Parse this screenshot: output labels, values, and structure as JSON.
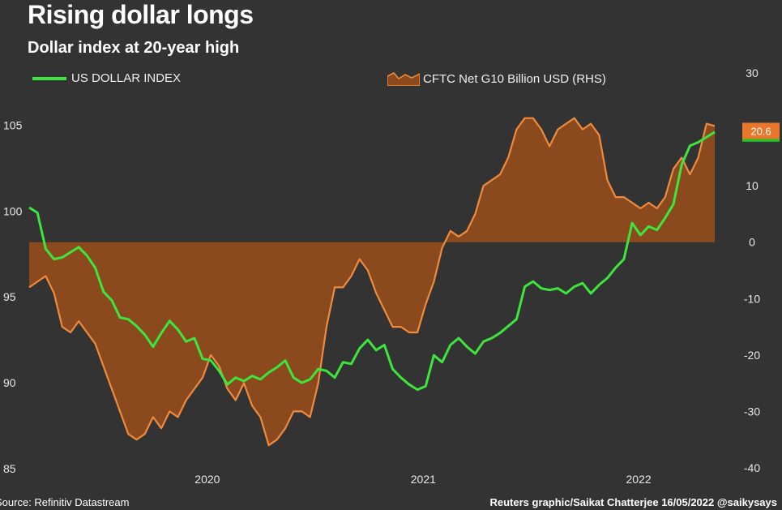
{
  "title": "Rising dollar longs",
  "subtitle": "Dollar index at 20-year high",
  "footer": {
    "source": "Source: Refinitiv Datastream",
    "credit": "Reuters graphic/Saikat Chatterjee 16/05/2022 @saikysays"
  },
  "colors": {
    "background": "#333333",
    "usd_line": "#3ce63c",
    "cftc_fill": "#8b4a1e",
    "cftc_line": "#f08a3c"
  },
  "chart_data": {
    "type": "line",
    "x_ticks": [
      "2020",
      "2021",
      "2022"
    ],
    "x_tick_dates": [
      "2020-01-01",
      "2021-01-01",
      "2022-01-01"
    ],
    "x_range": [
      "2019-03-05",
      "2022-05-10"
    ],
    "y_left": {
      "ylim": [
        85,
        107
      ],
      "ticks": [
        85,
        90,
        95,
        100,
        105
      ]
    },
    "y_right": {
      "ylim": [
        -40,
        30
      ],
      "ticks": [
        -40,
        -30,
        -20,
        -10,
        0,
        10,
        20,
        30
      ]
    },
    "series": [
      {
        "name": "US DOLLAR INDEX",
        "type": "line",
        "axis": "left",
        "last_value_label": "104.6",
        "x": [
          "2019-03-05",
          "2019-03-19",
          "2019-04-02",
          "2019-04-16",
          "2019-04-30",
          "2019-05-14",
          "2019-05-28",
          "2019-06-11",
          "2019-06-25",
          "2019-07-09",
          "2019-07-23",
          "2019-08-06",
          "2019-08-20",
          "2019-09-03",
          "2019-09-17",
          "2019-10-01",
          "2019-10-15",
          "2019-10-29",
          "2019-11-12",
          "2019-11-26",
          "2019-12-10",
          "2019-12-24",
          "2020-01-07",
          "2020-01-21",
          "2020-02-04",
          "2020-02-18",
          "2020-03-03",
          "2020-03-17",
          "2020-03-31",
          "2020-04-14",
          "2020-04-28",
          "2020-05-12",
          "2020-05-26",
          "2020-06-09",
          "2020-06-23",
          "2020-07-07",
          "2020-07-21",
          "2020-08-04",
          "2020-08-18",
          "2020-09-01",
          "2020-09-15",
          "2020-09-29",
          "2020-10-13",
          "2020-10-27",
          "2020-11-10",
          "2020-11-24",
          "2020-12-08",
          "2020-12-22",
          "2021-01-05",
          "2021-01-19",
          "2021-02-02",
          "2021-02-16",
          "2021-03-02",
          "2021-03-16",
          "2021-03-30",
          "2021-04-13",
          "2021-04-27",
          "2021-05-11",
          "2021-05-25",
          "2021-06-08",
          "2021-06-22",
          "2021-07-06",
          "2021-07-20",
          "2021-08-03",
          "2021-08-17",
          "2021-08-31",
          "2021-09-14",
          "2021-09-28",
          "2021-10-12",
          "2021-10-26",
          "2021-11-09",
          "2021-11-23",
          "2021-12-07",
          "2021-12-21",
          "2022-01-04",
          "2022-01-18",
          "2022-02-01",
          "2022-02-15",
          "2022-03-01",
          "2022-03-15",
          "2022-03-29",
          "2022-04-12",
          "2022-04-26",
          "2022-05-10"
        ],
        "values": [
          100.2,
          99.9,
          97.8,
          97.2,
          97.3,
          97.6,
          97.9,
          97.4,
          96.7,
          95.3,
          94.8,
          93.8,
          93.7,
          93.3,
          92.8,
          92.1,
          92.9,
          93.6,
          93.1,
          92.4,
          92.6,
          91.4,
          91.3,
          90.7,
          89.9,
          90.3,
          90.1,
          90.4,
          90.2,
          90.6,
          90.9,
          91.3,
          90.3,
          90.0,
          90.2,
          90.8,
          90.7,
          90.3,
          91.2,
          91.1,
          92.0,
          92.5,
          91.9,
          92.2,
          90.8,
          90.3,
          89.9,
          89.6,
          89.8,
          91.6,
          91.2,
          92.2,
          92.6,
          92.1,
          91.7,
          92.4,
          92.6,
          92.9,
          93.3,
          93.7,
          95.6,
          95.9,
          95.5,
          95.4,
          95.5,
          95.2,
          95.6,
          95.8,
          95.2,
          95.7,
          96.1,
          96.7,
          97.2,
          99.3,
          98.6,
          99.1,
          98.9,
          99.6,
          100.4,
          102.7,
          103.8,
          104.0,
          104.3,
          104.6
        ]
      },
      {
        "name": "CFTC Net G10 Billion USD (RHS)",
        "type": "area",
        "axis": "right",
        "last_value_label": "20.6",
        "x": [
          "2019-03-05",
          "2019-03-19",
          "2019-04-02",
          "2019-04-16",
          "2019-04-30",
          "2019-05-14",
          "2019-05-28",
          "2019-06-11",
          "2019-06-25",
          "2019-07-09",
          "2019-07-23",
          "2019-08-06",
          "2019-08-20",
          "2019-09-03",
          "2019-09-17",
          "2019-10-01",
          "2019-10-15",
          "2019-10-29",
          "2019-11-12",
          "2019-11-26",
          "2019-12-10",
          "2019-12-24",
          "2020-01-07",
          "2020-01-21",
          "2020-02-04",
          "2020-02-18",
          "2020-03-03",
          "2020-03-17",
          "2020-03-31",
          "2020-04-14",
          "2020-04-28",
          "2020-05-12",
          "2020-05-26",
          "2020-06-09",
          "2020-06-23",
          "2020-07-07",
          "2020-07-21",
          "2020-08-04",
          "2020-08-18",
          "2020-09-01",
          "2020-09-15",
          "2020-09-29",
          "2020-10-13",
          "2020-10-27",
          "2020-11-10",
          "2020-11-24",
          "2020-12-08",
          "2020-12-22",
          "2021-01-05",
          "2021-01-19",
          "2021-02-02",
          "2021-02-16",
          "2021-03-02",
          "2021-03-16",
          "2021-03-30",
          "2021-04-13",
          "2021-04-27",
          "2021-05-11",
          "2021-05-25",
          "2021-06-08",
          "2021-06-22",
          "2021-07-06",
          "2021-07-20",
          "2021-08-03",
          "2021-08-17",
          "2021-08-31",
          "2021-09-14",
          "2021-09-28",
          "2021-10-12",
          "2021-10-26",
          "2021-11-09",
          "2021-11-23",
          "2021-12-07",
          "2021-12-21",
          "2022-01-04",
          "2022-01-18",
          "2022-02-01",
          "2022-02-15",
          "2022-03-01",
          "2022-03-15",
          "2022-03-29",
          "2022-04-12",
          "2022-04-26",
          "2022-05-10"
        ],
        "values": [
          -8,
          -7,
          -6,
          -9,
          -15,
          -16,
          -14,
          -16,
          -18,
          -22,
          -26,
          -30,
          -34,
          -35,
          -34,
          -31,
          -33,
          -30,
          -31,
          -28,
          -26,
          -24,
          -20,
          -22,
          -26,
          -28,
          -25,
          -29,
          -31,
          -36,
          -35,
          -33,
          -30,
          -30,
          -31,
          -25,
          -15,
          -8,
          -8,
          -6,
          -3,
          -5,
          -9,
          -12,
          -15,
          -15,
          -16,
          -16,
          -11,
          -7,
          -1,
          2,
          1,
          2,
          5,
          10,
          11,
          12,
          15,
          20,
          22,
          22,
          20,
          17,
          20,
          21,
          22,
          20,
          21,
          19,
          11,
          8,
          8,
          7,
          6,
          7,
          6,
          8,
          13,
          15,
          12,
          15,
          21,
          20.6
        ]
      }
    ]
  }
}
